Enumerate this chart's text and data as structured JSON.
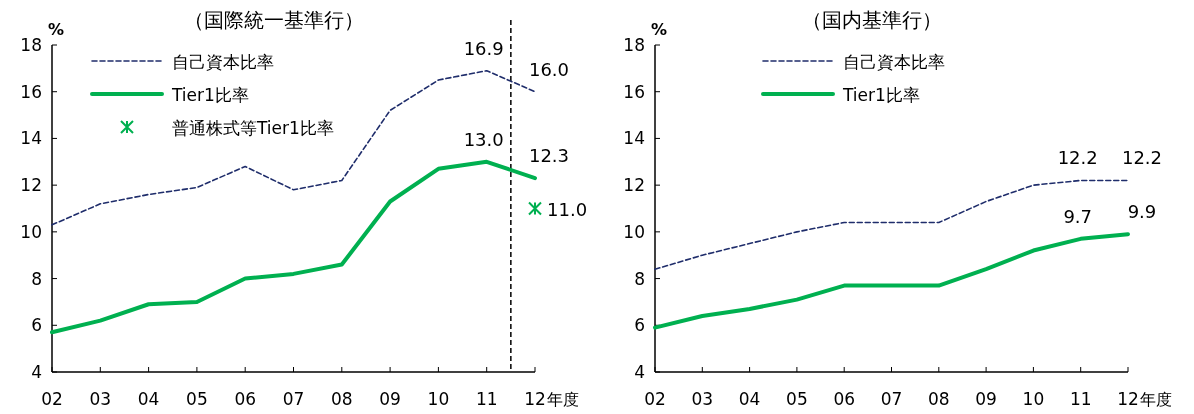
{
  "chart_data": [
    {
      "type": "line",
      "title": "（国際統一基準行）",
      "ylabel": "%",
      "xlabel": "年度",
      "categories": [
        "02",
        "03",
        "04",
        "05",
        "06",
        "07",
        "08",
        "09",
        "10",
        "11",
        "12"
      ],
      "ylim": [
        4,
        18
      ],
      "yticks": [
        4,
        6,
        8,
        10,
        12,
        14,
        16,
        18
      ],
      "legend": "top left",
      "grid": false,
      "series": [
        {
          "name": "自己資本比率",
          "color": "#1f2d6b",
          "line_style": "dashed",
          "values": [
            10.3,
            11.2,
            11.6,
            11.9,
            12.8,
            11.8,
            12.2,
            15.2,
            16.5,
            16.9,
            16.0
          ],
          "value_labels": [
            null,
            null,
            null,
            null,
            null,
            null,
            null,
            null,
            null,
            "16.9",
            "16.0"
          ]
        },
        {
          "name": "Tier1比率",
          "color": "#00b050",
          "line_style": "solid",
          "values": [
            5.7,
            6.2,
            6.9,
            7.0,
            8.0,
            8.2,
            8.6,
            11.3,
            12.7,
            13.0,
            12.3
          ],
          "value_labels": [
            null,
            null,
            null,
            null,
            null,
            null,
            null,
            null,
            null,
            "13.0",
            "12.3"
          ]
        },
        {
          "name": "普通株式等Tier1比率",
          "type": "scatter",
          "marker": "cross",
          "color": "#00b050",
          "x": [
            "12"
          ],
          "values": [
            11.0
          ],
          "value_labels": [
            "11.0"
          ]
        }
      ]
    },
    {
      "type": "line",
      "title": "（国内基準行）",
      "ylabel": "%",
      "xlabel": "年度",
      "categories": [
        "02",
        "03",
        "04",
        "05",
        "06",
        "07",
        "08",
        "09",
        "10",
        "11",
        "12"
      ],
      "ylim": [
        4,
        18
      ],
      "yticks": [
        4,
        6,
        8,
        10,
        12,
        14,
        16,
        18
      ],
      "legend": "top",
      "grid": false,
      "series": [
        {
          "name": "自己資本比率",
          "color": "#1f2d6b",
          "line_style": "dashed",
          "values": [
            8.4,
            9.0,
            9.5,
            10.0,
            10.4,
            10.4,
            10.4,
            11.3,
            12.0,
            12.2,
            12.2
          ],
          "value_labels": [
            null,
            null,
            null,
            null,
            null,
            null,
            null,
            null,
            null,
            "12.2",
            "12.2"
          ]
        },
        {
          "name": "Tier1比率",
          "color": "#00b050",
          "line_style": "solid",
          "values": [
            5.9,
            6.4,
            6.7,
            7.1,
            7.7,
            7.7,
            7.7,
            8.4,
            9.2,
            9.7,
            9.9
          ],
          "value_labels": [
            null,
            null,
            null,
            null,
            null,
            null,
            null,
            null,
            null,
            "9.7",
            "9.9"
          ]
        }
      ]
    }
  ]
}
